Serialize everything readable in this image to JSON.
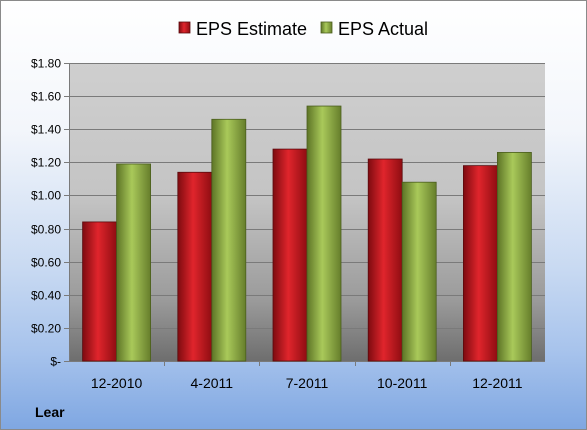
{
  "chart_data": {
    "type": "bar",
    "categories": [
      "12-2010",
      "4-2011",
      "7-2011",
      "10-2011",
      "12-2011"
    ],
    "series": [
      {
        "name": "EPS Estimate",
        "values": [
          0.84,
          1.14,
          1.28,
          1.22,
          1.18
        ],
        "color": "#c8141c"
      },
      {
        "name": "EPS Actual",
        "values": [
          1.19,
          1.46,
          1.54,
          1.08,
          1.26
        ],
        "color": "#8fb040"
      }
    ],
    "yticks": [
      0,
      0.2,
      0.4,
      0.6,
      0.8,
      1.0,
      1.2,
      1.4,
      1.6,
      1.8
    ],
    "ytick_labels": [
      "$-",
      "$0.20",
      "$0.40",
      "$0.60",
      "$0.80",
      "$1.00",
      "$1.20",
      "$1.40",
      "$1.60",
      "$1.80"
    ],
    "ylim": [
      0,
      1.8
    ],
    "legend_position": "top-center",
    "grid": true,
    "footer_label": "Lear"
  }
}
